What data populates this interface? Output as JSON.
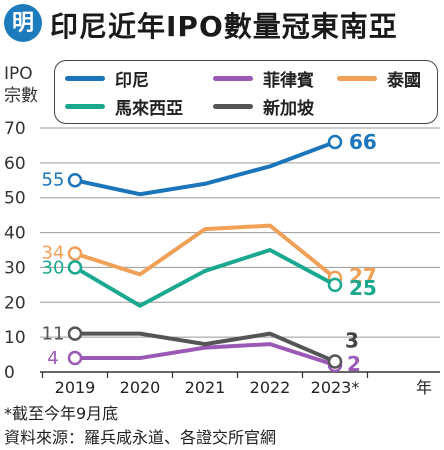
{
  "header": {
    "logo_text": "明",
    "title": "印尼近年IPO數量冠東南亞"
  },
  "footnotes": {
    "note": "*截至今年9月底",
    "source": "資料來源：羅兵咸永道、各證交所官網"
  },
  "chart_data": {
    "type": "line",
    "title": "印尼近年IPO數量冠東南亞",
    "ylabel_lines": [
      "IPO",
      "宗數"
    ],
    "xlabel": "年",
    "categories": [
      "2019",
      "2020",
      "2021",
      "2022",
      "2023*"
    ],
    "ylim": [
      0,
      70
    ],
    "yticks": [
      0,
      10,
      20,
      30,
      40,
      50,
      60,
      70
    ],
    "grid": "horizontal",
    "legend_position": "top",
    "series": [
      {
        "name": "印尼",
        "color": "#1b75bb",
        "values": [
          55,
          51,
          54,
          59,
          66
        ],
        "start_label": "55",
        "end_label": "66"
      },
      {
        "name": "菲律賓",
        "color": "#9b59b6",
        "values": [
          4,
          4,
          7,
          8,
          2
        ],
        "start_label": "4",
        "end_label": "2"
      },
      {
        "name": "泰國",
        "color": "#f0a057",
        "values": [
          34,
          28,
          41,
          42,
          27
        ],
        "start_label": "34",
        "end_label": "27"
      },
      {
        "name": "馬來西亞",
        "color": "#1aa98f",
        "values": [
          30,
          19,
          29,
          35,
          25
        ],
        "start_label": "30",
        "end_label": "25"
      },
      {
        "name": "新加坡",
        "color": "#555555",
        "values": [
          11,
          11,
          8,
          11,
          3
        ],
        "start_label": "11",
        "end_label": "3"
      }
    ]
  }
}
